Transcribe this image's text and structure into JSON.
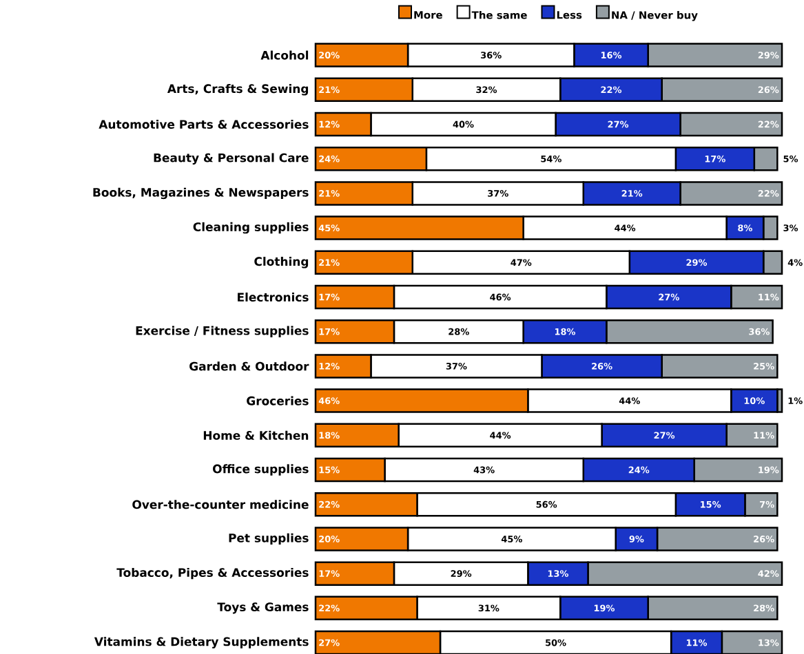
{
  "chart_data": {
    "type": "bar",
    "orientation": "horizontal",
    "stacked": true,
    "legend": "top",
    "tick_labels": "y",
    "xlim": [
      0,
      101
    ],
    "categories": [
      "Alcohol",
      "Arts, Crafts & Sewing",
      "Automotive Parts & Accessories",
      "Beauty & Personal Care",
      "Books, Magazines & Newspapers",
      "Cleaning supplies",
      "Clothing",
      "Electronics",
      "Exercise / Fitness supplies",
      "Garden & Outdoor",
      "Groceries",
      "Home & Kitchen",
      "Office supplies",
      "Over-the-counter medicine",
      "Pet supplies",
      "Tobacco, Pipes & Accessories",
      "Toys & Games",
      "Vitamins & Dietary Supplements"
    ],
    "series": [
      {
        "name": "More",
        "color": "#f07800",
        "values": [
          20,
          21,
          12,
          24,
          21,
          45,
          21,
          17,
          17,
          12,
          46,
          18,
          15,
          22,
          20,
          17,
          22,
          27
        ],
        "value_labels": [
          "20%",
          "21%",
          "12%",
          "24%",
          "21%",
          "45%",
          "21%",
          "17%",
          "17%",
          "12%",
          "46%",
          "18%",
          "15%",
          "22%",
          "20%",
          "17%",
          "22%",
          "27%"
        ]
      },
      {
        "name": "The same",
        "color": "#ffffff",
        "values": [
          36,
          32,
          40,
          54,
          37,
          44,
          47,
          46,
          28,
          37,
          44,
          44,
          43,
          56,
          45,
          29,
          31,
          50
        ],
        "value_labels": [
          "36%",
          "32%",
          "40%",
          "54%",
          "37%",
          "44%",
          "47%",
          "46%",
          "28%",
          "37%",
          "44%",
          "44%",
          "43%",
          "56%",
          "45%",
          "29%",
          "31%",
          "50%"
        ]
      },
      {
        "name": "Less",
        "color": "#1a35c8",
        "values": [
          16,
          22,
          27,
          17,
          21,
          8,
          29,
          27,
          18,
          26,
          10,
          27,
          24,
          15,
          9,
          13,
          19,
          11
        ],
        "value_labels": [
          "16%",
          "22%",
          "27%",
          "17%",
          "21%",
          "8%",
          "29%",
          "27%",
          "18%",
          "26%",
          "10%",
          "27%",
          "24%",
          "15%",
          "9%",
          "13%",
          "19%",
          "11%"
        ]
      },
      {
        "name": "NA / Never buy",
        "color": "#959ea3",
        "values": [
          29,
          26,
          22,
          5,
          22,
          3,
          4,
          11,
          36,
          25,
          1,
          11,
          19,
          7,
          26,
          42,
          28,
          13
        ],
        "value_labels": [
          "29%",
          "26%",
          "22%",
          "5%",
          "22%",
          "3%",
          "4%",
          "11%",
          "36%",
          "25%",
          "1%",
          "11%",
          "19%",
          "7%",
          "26%",
          "42%",
          "28%",
          "13%"
        ]
      }
    ]
  }
}
